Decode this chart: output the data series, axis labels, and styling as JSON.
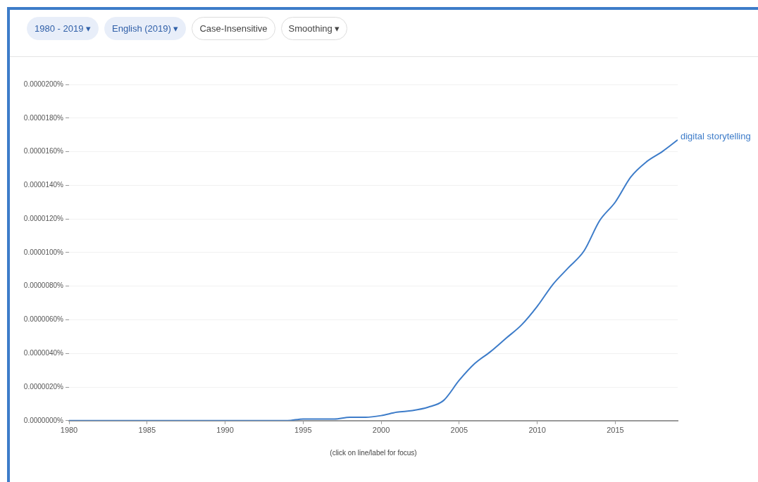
{
  "chart_data": {
    "type": "line",
    "x": [
      1980,
      1981,
      1982,
      1983,
      1984,
      1985,
      1986,
      1987,
      1988,
      1989,
      1990,
      1991,
      1992,
      1993,
      1994,
      1995,
      1996,
      1997,
      1998,
      1999,
      2000,
      2001,
      2002,
      2003,
      2004,
      2005,
      2006,
      2007,
      2008,
      2009,
      2010,
      2011,
      2012,
      2013,
      2014,
      2015,
      2016,
      2017,
      2018,
      2019
    ],
    "series": [
      {
        "name": "digital storytelling",
        "color": "#3d7cc9",
        "values": [
          0,
          0,
          0,
          0,
          0,
          0,
          0,
          0,
          0,
          0,
          0,
          0,
          0,
          0,
          0,
          1e-07,
          1e-07,
          1e-07,
          2e-07,
          2e-07,
          3e-07,
          5e-07,
          6e-07,
          8e-07,
          1.2e-06,
          2.4e-06,
          3.4e-06,
          4.1e-06,
          4.9e-06,
          5.7e-06,
          6.8e-06,
          8.1e-06,
          9.1e-06,
          1.01e-05,
          1.19e-05,
          1.3e-05,
          1.45e-05,
          1.54e-05,
          1.6e-05,
          1.67e-05
        ]
      }
    ],
    "xlim": [
      1980,
      2019
    ],
    "xticks": [
      1980,
      1985,
      1990,
      1995,
      2000,
      2005,
      2010,
      2015
    ],
    "ylim": [
      0,
      2e-05
    ],
    "yticks": [
      {
        "value": 0,
        "label": "0.0000000%"
      },
      {
        "value": 2e-06,
        "label": "0.0000020%"
      },
      {
        "value": 4e-06,
        "label": "0.0000040%"
      },
      {
        "value": 6e-06,
        "label": "0.0000060%"
      },
      {
        "value": 8e-06,
        "label": "0.0000080%"
      },
      {
        "value": 1e-05,
        "label": "0.0000100%"
      },
      {
        "value": 1.2e-05,
        "label": "0.0000120%"
      },
      {
        "value": 1.4e-05,
        "label": "0.0000140%"
      },
      {
        "value": 1.6e-05,
        "label": "0.0000160%"
      },
      {
        "value": 1.8e-05,
        "label": "0.0000180%"
      },
      {
        "value": 2e-05,
        "label": "0.0000200%"
      }
    ],
    "grid": "y",
    "legend": false,
    "marker": "none",
    "line_style": "solid",
    "annotations": [
      "1980 - 2019 ▾",
      "English (2019) ▾",
      "Case-Insensitive",
      "Smoothing ▾",
      "(click on line/label for focus)"
    ]
  }
}
